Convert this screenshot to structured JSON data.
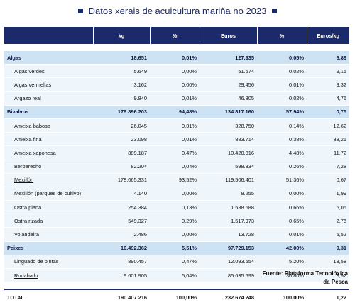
{
  "title": "Datos xerais de acuicultura mariña no 2023",
  "columns": [
    "",
    "kg",
    "%",
    "Euros",
    "%",
    "Euros/kg"
  ],
  "categories": [
    {
      "name": "Algas",
      "kg": "18.651",
      "kg_pct": "0,01%",
      "euros": "127.935",
      "euros_pct": "0,05%",
      "euros_kg": "6,86",
      "items": [
        {
          "name": "Algas verdes",
          "kg": "5.649",
          "kg_pct": "0,00%",
          "euros": "51.674",
          "euros_pct": "0,02%",
          "euros_kg": "9,15"
        },
        {
          "name": "Algas vermellas",
          "kg": "3.162",
          "kg_pct": "0,00%",
          "euros": "29.456",
          "euros_pct": "0,01%",
          "euros_kg": "9,32"
        },
        {
          "name": "Argazo real",
          "kg": "9.840",
          "kg_pct": "0,01%",
          "euros": "46.805",
          "euros_pct": "0,02%",
          "euros_kg": "4,76"
        }
      ]
    },
    {
      "name": "Bivalvos",
      "kg": "179.896.203",
      "kg_pct": "94,48%",
      "euros": "134.817.160",
      "euros_pct": "57,94%",
      "euros_kg": "0,75",
      "items": [
        {
          "name": "Ameixa babosa",
          "kg": "26.045",
          "kg_pct": "0,01%",
          "euros": "328.750",
          "euros_pct": "0,14%",
          "euros_kg": "12,62"
        },
        {
          "name": "Ameixa fina",
          "kg": "23.098",
          "kg_pct": "0,01%",
          "euros": "883.714",
          "euros_pct": "0,38%",
          "euros_kg": "38,26"
        },
        {
          "name": "Ameixa xaponesa",
          "kg": "889.187",
          "kg_pct": "0,47%",
          "euros": "10.420.816",
          "euros_pct": "4,48%",
          "euros_kg": "11,72"
        },
        {
          "name": "Berberecho",
          "kg": "82.204",
          "kg_pct": "0,04%",
          "euros": "598.834",
          "euros_pct": "0,26%",
          "euros_kg": "7,28"
        },
        {
          "name": "Mexillón",
          "kg": "178.065.331",
          "kg_pct": "93,52%",
          "euros": "119.506.401",
          "euros_pct": "51,36%",
          "euros_kg": "0,67"
        },
        {
          "name": "Mexillón (parques de cultivo)",
          "kg": "4.140",
          "kg_pct": "0,00%",
          "euros": "8.255",
          "euros_pct": "0,00%",
          "euros_kg": "1,99"
        },
        {
          "name": "Ostra plana",
          "kg": "254.384",
          "kg_pct": "0,13%",
          "euros": "1.538.688",
          "euros_pct": "0,66%",
          "euros_kg": "6,05"
        },
        {
          "name": "Ostra rizada",
          "kg": "549.327",
          "kg_pct": "0,29%",
          "euros": "1.517.973",
          "euros_pct": "0,65%",
          "euros_kg": "2,76"
        },
        {
          "name": "Volandeira",
          "kg": "2.486",
          "kg_pct": "0,00%",
          "euros": "13.728",
          "euros_pct": "0,01%",
          "euros_kg": "5,52"
        }
      ]
    },
    {
      "name": "Peixes",
      "kg": "10.492.362",
      "kg_pct": "5,51%",
      "euros": "97.729.153",
      "euros_pct": "42,00%",
      "euros_kg": "9,31",
      "items": [
        {
          "name": "Linguado de pintas",
          "kg": "890.457",
          "kg_pct": "0,47%",
          "euros": "12.093.554",
          "euros_pct": "5,20%",
          "euros_kg": "13,58"
        },
        {
          "name": "Rodaballo",
          "kg": "9.601.905",
          "kg_pct": "5,04%",
          "euros": "85.635.599",
          "euros_pct": "36,80%",
          "euros_kg": "8,92"
        }
      ]
    }
  ],
  "total": {
    "name": "TOTAL",
    "kg": "190.407.216",
    "kg_pct": "100,00%",
    "euros": "232.674.248",
    "euros_pct": "100,00%",
    "euros_kg": "1,22"
  },
  "source_line1": "Fuente: Plataforma Tecnolóxica",
  "source_line2": "da Pesca",
  "colors": {
    "header": "#1b2a6b",
    "category_row": "#cde3f3",
    "item_row": "#eef5fb"
  }
}
